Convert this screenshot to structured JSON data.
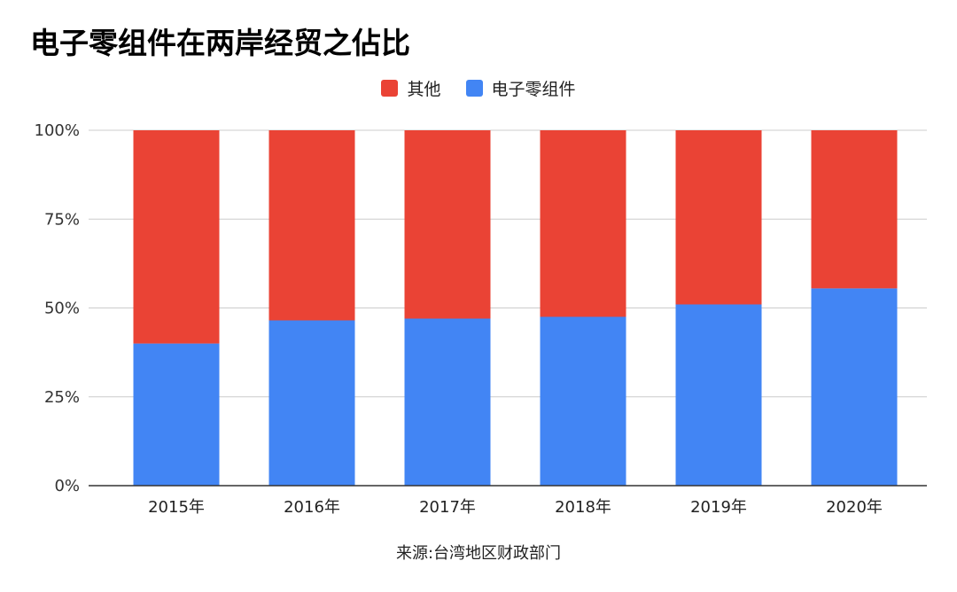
{
  "title": "电子零组件在两岸经贸之佔比",
  "source": "来源:台湾地区财政部门",
  "chart_data": {
    "type": "bar",
    "stacked": true,
    "categories": [
      "2015年",
      "2016年",
      "2017年",
      "2018年",
      "2019年",
      "2020年"
    ],
    "series": [
      {
        "name": "电子零组件",
        "color": "#4285f4",
        "values": [
          0.4,
          0.465,
          0.47,
          0.475,
          0.51,
          0.555
        ]
      },
      {
        "name": "其他",
        "color": "#ea4335",
        "values": [
          0.6,
          0.535,
          0.53,
          0.525,
          0.49,
          0.445
        ]
      }
    ],
    "legend_order": [
      "其他",
      "电子零组件"
    ],
    "ylim": [
      0,
      1
    ],
    "yticks": [
      "0%",
      "25%",
      "50%",
      "75%",
      "100%"
    ],
    "grid": true,
    "legend_position": "top-center"
  }
}
